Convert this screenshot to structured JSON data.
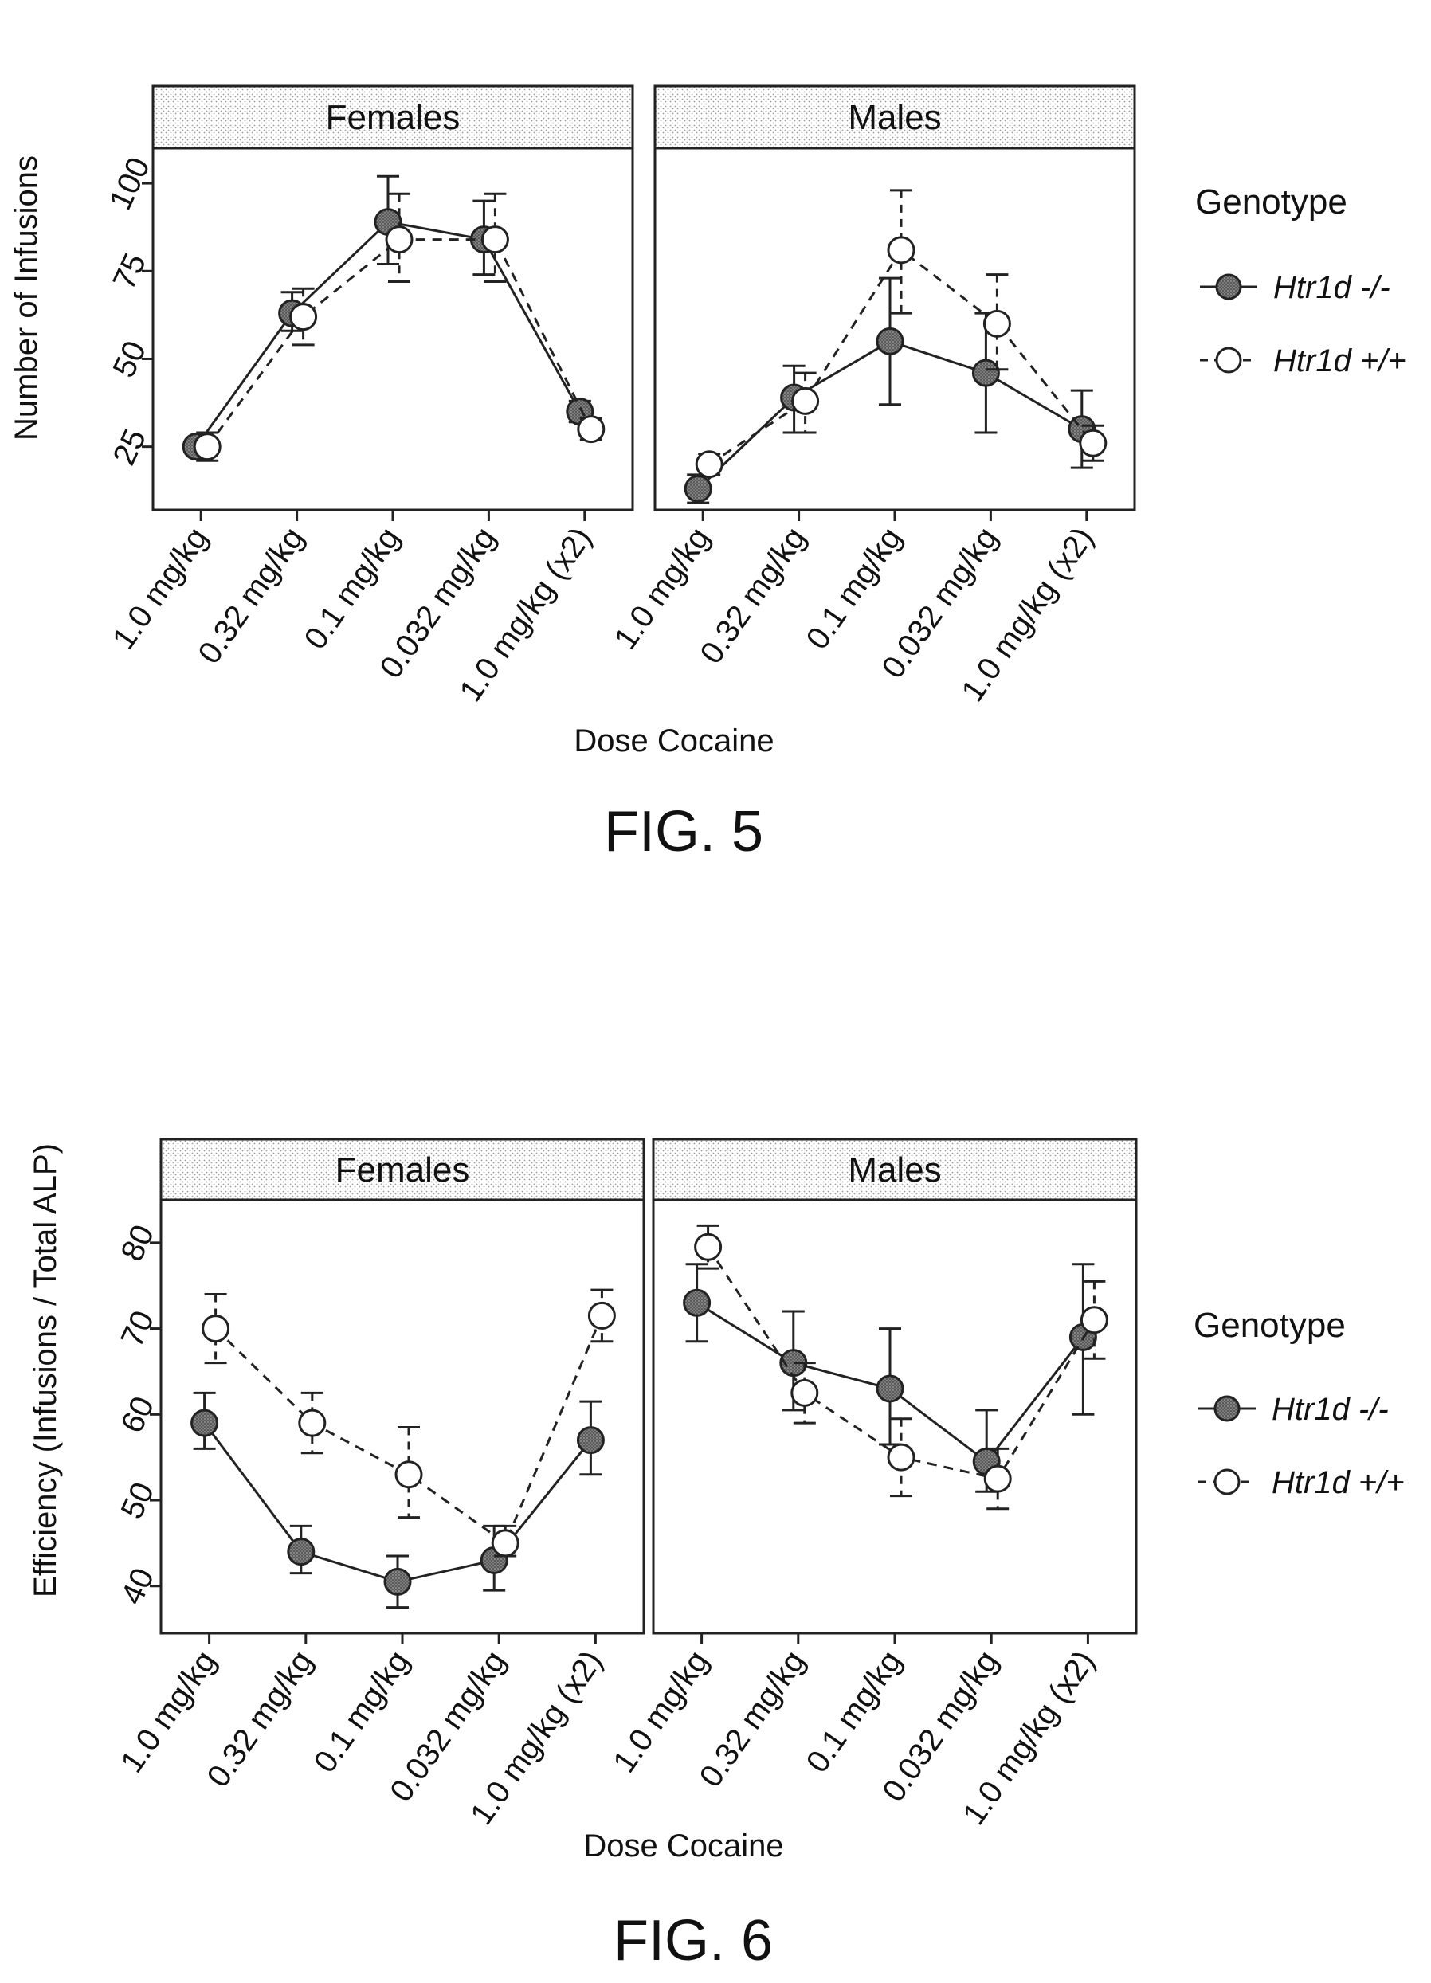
{
  "figures": [
    {
      "caption": "FIG. 5",
      "genotype_legend_title": "Genotype",
      "legend_labels": [
        "Htr1d -/-",
        "Htr1d +/+"
      ],
      "chart_data": {
        "type": "line",
        "ylabel": "Number of Infusions",
        "xlabel": "Dose Cocaine",
        "categories": [
          "1.0 mg/kg",
          "0.32 mg/kg",
          "0.1 mg/kg",
          "0.032 mg/kg",
          "1.0 mg/kg (x2)"
        ],
        "ylim": [
          7,
          110
        ],
        "yticks": [
          25,
          50,
          75,
          100
        ],
        "grid": false,
        "legend_position": "right",
        "panels": [
          {
            "title": "Females",
            "series": [
              {
                "name": "Htr1d -/-",
                "style": "solid",
                "marker": "filled",
                "values": [
                  25,
                  63,
                  89,
                  84,
                  35
                ],
                "err_low": [
                  23.5,
                  58,
                  77,
                  74,
                  32
                ],
                "err_high": [
                  26.5,
                  69,
                  102,
                  95,
                  38
                ]
              },
              {
                "name": "Htr1d +/+",
                "style": "dashed",
                "marker": "open",
                "values": [
                  25,
                  62,
                  84,
                  84,
                  30
                ],
                "err_low": [
                  21,
                  54,
                  72,
                  72,
                  27
                ],
                "err_high": [
                  29,
                  70,
                  97,
                  97,
                  33
                ]
              }
            ]
          },
          {
            "title": "Males",
            "series": [
              {
                "name": "Htr1d -/-",
                "style": "solid",
                "marker": "filled",
                "values": [
                  13,
                  39,
                  55,
                  46,
                  30
                ],
                "err_low": [
                  9,
                  29,
                  37,
                  29,
                  19
                ],
                "err_high": [
                  17,
                  48,
                  73,
                  63,
                  41
                ]
              },
              {
                "name": "Htr1d +/+",
                "style": "dashed",
                "marker": "open",
                "values": [
                  20,
                  38,
                  81,
                  60,
                  26
                ],
                "err_low": [
                  17,
                  29,
                  63,
                  47,
                  21
                ],
                "err_high": [
                  23,
                  46,
                  98,
                  74,
                  31
                ]
              }
            ]
          }
        ]
      }
    },
    {
      "caption": "FIG. 6",
      "genotype_legend_title": "Genotype",
      "legend_labels": [
        "Htr1d -/-",
        "Htr1d +/+"
      ],
      "chart_data": {
        "type": "line",
        "ylabel": "Efficiency (Infusions / Total ALP)",
        "xlabel": "Dose Cocaine",
        "categories": [
          "1.0 mg/kg",
          "0.32 mg/kg",
          "0.1 mg/kg",
          "0.032 mg/kg",
          "1.0 mg/kg (x2)"
        ],
        "ylim": [
          34.5,
          85
        ],
        "yticks": [
          40,
          50,
          60,
          70,
          80
        ],
        "grid": false,
        "legend_position": "right",
        "panels": [
          {
            "title": "Females",
            "series": [
              {
                "name": "Htr1d -/-",
                "style": "solid",
                "marker": "filled",
                "values": [
                  59,
                  44,
                  40.5,
                  43,
                  57
                ],
                "err_low": [
                  56,
                  41.5,
                  37.5,
                  39.5,
                  53
                ],
                "err_high": [
                  62.5,
                  47,
                  43.5,
                  47,
                  61.5
                ]
              },
              {
                "name": "Htr1d +/+",
                "style": "dashed",
                "marker": "open",
                "values": [
                  70,
                  59,
                  53,
                  45,
                  71.5
                ],
                "err_low": [
                  66,
                  55.5,
                  48,
                  43.5,
                  68.5
                ],
                "err_high": [
                  74,
                  62.5,
                  58.5,
                  47,
                  74.5
                ]
              }
            ]
          },
          {
            "title": "Males",
            "series": [
              {
                "name": "Htr1d -/-",
                "style": "solid",
                "marker": "filled",
                "values": [
                  73,
                  66,
                  63,
                  54.5,
                  69
                ],
                "err_low": [
                  68.5,
                  60.5,
                  56.5,
                  51,
                  60
                ],
                "err_high": [
                  77.5,
                  72,
                  70,
                  60.5,
                  77.5
                ]
              },
              {
                "name": "Htr1d +/+",
                "style": "dashed",
                "marker": "open",
                "values": [
                  79.5,
                  62.5,
                  55,
                  52.5,
                  71
                ],
                "err_low": [
                  77,
                  59,
                  50.5,
                  49,
                  66.5
                ],
                "err_high": [
                  82,
                  66,
                  59.5,
                  56,
                  75.5
                ]
              }
            ]
          }
        ]
      }
    }
  ]
}
